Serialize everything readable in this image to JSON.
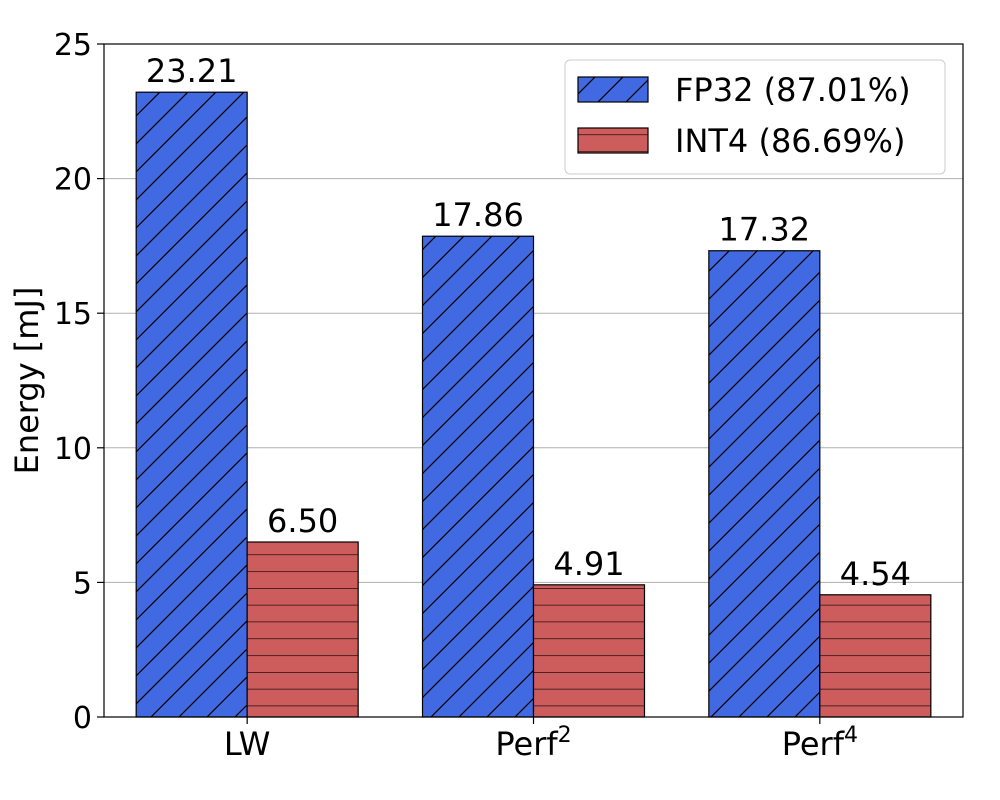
{
  "chart_data": {
    "type": "bar",
    "categories": [
      {
        "base": "LW",
        "sup": ""
      },
      {
        "base": "Perf",
        "sup": "2"
      },
      {
        "base": "Perf",
        "sup": "4"
      }
    ],
    "series": [
      {
        "name": "FP32 (87.01%)",
        "values": [
          23.21,
          17.86,
          17.32
        ],
        "value_labels": [
          "23.21",
          "17.86",
          "17.32"
        ],
        "color": "#4169e1",
        "hatch": "diagonal"
      },
      {
        "name": "INT4 (86.69%)",
        "values": [
          6.5,
          4.91,
          4.54
        ],
        "value_labels": [
          "6.50",
          "4.91",
          "4.54"
        ],
        "color": "#cd5c5c",
        "hatch": "horizontal"
      }
    ],
    "ylabel": "Energy [mJ]",
    "xlabel": "",
    "ylim": [
      0,
      25
    ],
    "yticks": [
      0,
      5,
      10,
      15,
      20,
      25
    ],
    "ytick_labels": [
      "0",
      "5",
      "10",
      "15",
      "20",
      "25"
    ],
    "grid": "y",
    "legend_position": "top-right"
  }
}
